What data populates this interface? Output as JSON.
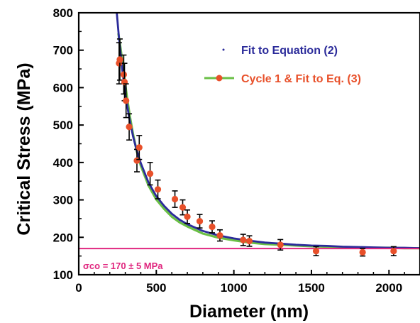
{
  "chart_data": {
    "type": "scatter",
    "xlabel": "Diameter (nm)",
    "ylabel": "Critical Stress (MPa)",
    "xlim": [
      0,
      2200
    ],
    "ylim": [
      100,
      800
    ],
    "xticks": [
      "0",
      "500",
      "1000",
      "1500",
      "2000"
    ],
    "yticks": [
      "100",
      "200",
      "300",
      "400",
      "500",
      "600",
      "700",
      "800"
    ],
    "grid": false,
    "legend_position": "top-right",
    "series": [
      {
        "name": "Fit to Equation (2)",
        "kind": "line",
        "color": "#2b2b9a",
        "x": [
          245,
          260,
          280,
          300,
          325,
          350,
          375,
          400,
          450,
          500,
          550,
          600,
          650,
          700,
          800,
          900,
          1000,
          1100,
          1200,
          1300,
          1400,
          1500,
          1600,
          1700,
          1800,
          1900,
          2000,
          2100,
          2200
        ],
        "y": [
          800,
          731,
          650,
          584,
          520,
          470,
          430,
          398,
          346,
          310,
          284,
          263,
          247,
          235,
          217,
          205,
          197,
          191,
          186,
          183,
          180,
          178,
          177,
          175,
          174,
          173,
          172,
          172,
          171
        ]
      },
      {
        "name": "Cycle 1 &  Fit to Eq. (3)",
        "kind": "line",
        "color": "#6abf45",
        "x": [
          255,
          270,
          290,
          310,
          330,
          350,
          375,
          400,
          450,
          500,
          550,
          600,
          650,
          700,
          800,
          900,
          1000,
          1100,
          1200,
          1300,
          1400,
          1500,
          1600,
          1700,
          1800,
          1900,
          2000,
          2100,
          2200
        ],
        "y": [
          745,
          705,
          640,
          577,
          523,
          476,
          428,
          391,
          338,
          301,
          276,
          255,
          240,
          229,
          210,
          199,
          192,
          186,
          182,
          180,
          178,
          176,
          175,
          174,
          173,
          172,
          172,
          171,
          171
        ]
      },
      {
        "name": "Cycle 1",
        "kind": "points",
        "color": "#e8502a",
        "x": [
          260,
          265,
          290,
          295,
          305,
          325,
          375,
          390,
          460,
          510,
          620,
          670,
          700,
          780,
          860,
          910,
          1060,
          1100,
          1300,
          1530,
          1830,
          2030
        ],
        "y": [
          665,
          675,
          635,
          615,
          565,
          495,
          405,
          440,
          370,
          328,
          302,
          280,
          255,
          243,
          228,
          205,
          193,
          190,
          180,
          163,
          160,
          163
        ],
        "err": [
          55,
          55,
          52,
          50,
          45,
          35,
          30,
          32,
          30,
          25,
          22,
          20,
          18,
          18,
          16,
          15,
          15,
          14,
          14,
          12,
          10,
          12
        ]
      }
    ],
    "reference_line": {
      "y": 170,
      "color": "#e0277f",
      "label_symbol": "σco",
      "label_rest": " = 170 ± 5 MPa"
    }
  }
}
